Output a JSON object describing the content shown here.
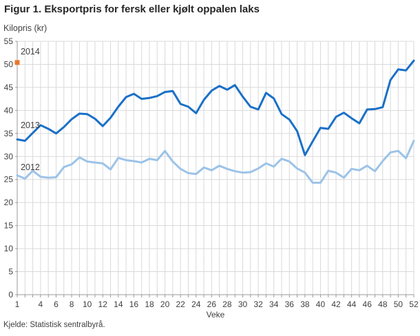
{
  "header": {
    "title": "Figur 1. Eksportpris for fersk eller kjølt oppalen laks"
  },
  "source": {
    "text": "Kjelde: Statistisk sentralbyrå."
  },
  "colors": {
    "grid": "#d9d9d9",
    "axis": "#999999",
    "text": "#404040",
    "series_2014": "#e9762a",
    "series_2013": "#1a70c7",
    "series_2012": "#9cc3e8"
  },
  "chart_data": {
    "type": "line",
    "title": "Figur 1. Eksportpris for fersk eller kjølt oppalen laks",
    "ylabel": "Kilopris (kr)",
    "xlabel": "Veke",
    "ylim": [
      0,
      55
    ],
    "xlim": [
      1,
      52
    ],
    "grid": true,
    "legend_position": "inline-labels",
    "y_ticks": [
      0,
      5,
      10,
      15,
      20,
      25,
      30,
      35,
      40,
      45,
      50,
      55
    ],
    "x_tick_labels": [
      1,
      4,
      6,
      8,
      10,
      12,
      14,
      16,
      18,
      20,
      22,
      24,
      26,
      28,
      30,
      32,
      34,
      36,
      38,
      40,
      42,
      44,
      46,
      48,
      50,
      52
    ],
    "weeks": [
      1,
      2,
      3,
      4,
      5,
      6,
      7,
      8,
      9,
      10,
      11,
      12,
      13,
      14,
      15,
      16,
      17,
      18,
      19,
      20,
      21,
      22,
      23,
      24,
      25,
      26,
      27,
      28,
      29,
      30,
      31,
      32,
      33,
      34,
      35,
      36,
      37,
      38,
      39,
      40,
      41,
      42,
      43,
      44,
      45,
      46,
      47,
      48,
      49,
      50,
      51,
      52
    ],
    "series": [
      {
        "name": "2014",
        "style": "square-point",
        "color_key": "series_2014",
        "points": [
          {
            "week": 1,
            "value": 50.4
          }
        ]
      },
      {
        "name": "2013",
        "style": "line",
        "color_key": "series_2013",
        "values": [
          33.7,
          33.4,
          35.1,
          36.8,
          36.0,
          35.0,
          36.4,
          38.1,
          39.3,
          39.2,
          38.2,
          36.6,
          38.4,
          40.8,
          42.9,
          43.6,
          42.5,
          42.7,
          43.1,
          44.0,
          44.2,
          41.4,
          40.8,
          39.4,
          42.3,
          44.3,
          45.3,
          44.5,
          45.5,
          43.0,
          40.8,
          40.2,
          43.8,
          42.6,
          39.2,
          38.0,
          35.5,
          30.3,
          33.3,
          36.2,
          36.0,
          38.6,
          39.5,
          38.3,
          37.2,
          40.2,
          40.3,
          40.7,
          46.6,
          48.9,
          48.7,
          50.8
        ]
      },
      {
        "name": "2012",
        "style": "line",
        "color_key": "series_2012",
        "values": [
          25.9,
          25.2,
          26.9,
          25.6,
          25.4,
          25.5,
          27.7,
          28.3,
          29.8,
          28.9,
          28.7,
          28.5,
          27.2,
          29.7,
          29.2,
          29.0,
          28.7,
          29.5,
          29.2,
          31.2,
          28.9,
          27.3,
          26.4,
          26.2,
          27.6,
          27.0,
          28.0,
          27.3,
          26.8,
          26.5,
          26.6,
          27.4,
          28.5,
          27.8,
          29.5,
          28.9,
          27.4,
          26.5,
          24.3,
          24.3,
          26.9,
          26.5,
          25.4,
          27.3,
          27.0,
          28.0,
          26.8,
          29.0,
          30.9,
          31.2,
          29.6,
          33.4
        ]
      }
    ]
  }
}
